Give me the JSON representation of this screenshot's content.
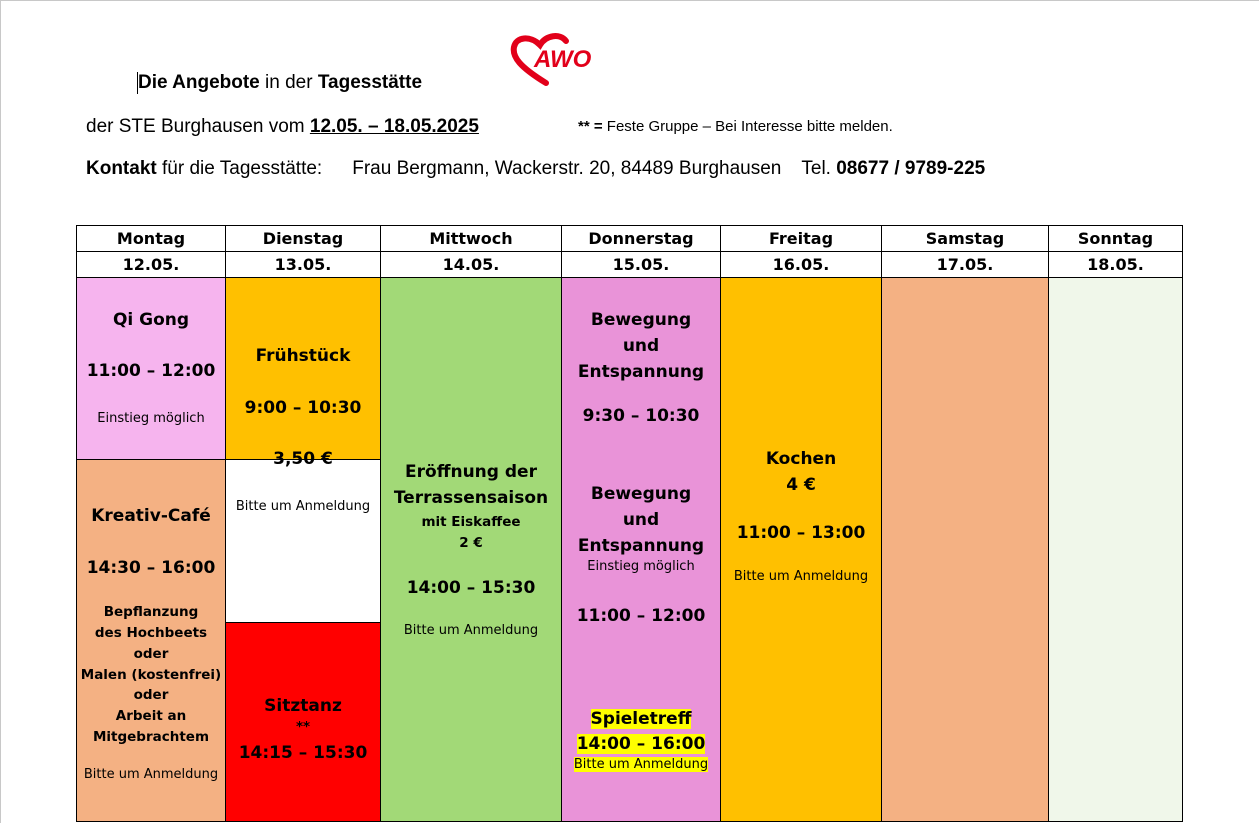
{
  "header": {
    "line1": {
      "p1": "Die Angebote",
      "p2": " in der ",
      "p3": "Tagesstätte"
    },
    "line2": {
      "prefix": "der STE Burghausen vom ",
      "date_range": " 12.05. – 18.05.2025"
    },
    "note": {
      "stars": "** =",
      "text": " Feste Gruppe – Bei Interesse bitte melden."
    },
    "line3": {
      "label_bold": "Kontakt",
      "label_rest": " für die Tagesstätte:",
      "address": "Frau Bergmann, Wackerstr. 20, 84489 Burghausen",
      "tel_label": "Tel. ",
      "tel": "08677 / 9789-225"
    }
  },
  "logo": {
    "text": "AWO",
    "color": "#e2001a"
  },
  "colors": {
    "qigong": "#f6b4ee",
    "kreativ": "#f4b183",
    "fruehstueck": "#ffc000",
    "sitztanz": "#ff0000",
    "mittwoch": "#a2d977",
    "donnerstag": "#e993d8",
    "freitag": "#ffc000",
    "samstag": "#f4b183",
    "sonntag": "#f0f7ea",
    "highlight": "#ffff00"
  },
  "days": [
    {
      "name": "Montag",
      "date": "12.05."
    },
    {
      "name": "Dienstag",
      "date": "13.05."
    },
    {
      "name": "Mittwoch",
      "date": "14.05."
    },
    {
      "name": "Donnerstag",
      "date": "15.05."
    },
    {
      "name": "Freitag",
      "date": "16.05."
    },
    {
      "name": "Samstag",
      "date": "17.05."
    },
    {
      "name": "Sonntag",
      "date": "18.05."
    }
  ],
  "montag": {
    "qigong": {
      "title": "Qi Gong",
      "time": "11:00 – 12:00",
      "note": "Einstieg möglich"
    },
    "kreativ": {
      "title": "Kreativ-Café",
      "time": "14:30 – 16:00",
      "lines": [
        "Bepflanzung",
        "des Hochbeets",
        "oder",
        "Malen (kostenfrei)",
        "oder",
        "Arbeit an",
        "Mitgebrachtem"
      ],
      "note": "Bitte um Anmeldung"
    }
  },
  "dienstag": {
    "fruehstueck": {
      "title": "Frühstück",
      "time": "9:00 – 10:30",
      "price": "3,50 €",
      "note": "Bitte um Anmeldung"
    },
    "sitztanz": {
      "title": "Sitztanz",
      "stars": "**",
      "time": "14:15 – 15:30"
    }
  },
  "mittwoch": {
    "title1": "Eröffnung der",
    "title2": "Terrassensaison",
    "sub": "mit Eiskaffee",
    "price": "2 €",
    "time": "14:00 – 15:30",
    "note": "Bitte um Anmeldung"
  },
  "donnerstag": {
    "block1": {
      "l1": "Bewegung",
      "l2": "und",
      "l3": "Entspannung",
      "time": "9:30 – 10:30"
    },
    "block2": {
      "l1": "Bewegung",
      "l2": "und",
      "l3": "Entspannung",
      "note": "Einstieg möglich",
      "time": "11:00 – 12:00"
    },
    "block3": {
      "title": "Spieletreff",
      "time": "14:00 – 16:00",
      "note": "Bitte um Anmeldung"
    }
  },
  "freitag": {
    "title": "Kochen",
    "price": "4 €",
    "time": "11:00 – 13:00",
    "note": "Bitte um Anmeldung"
  }
}
